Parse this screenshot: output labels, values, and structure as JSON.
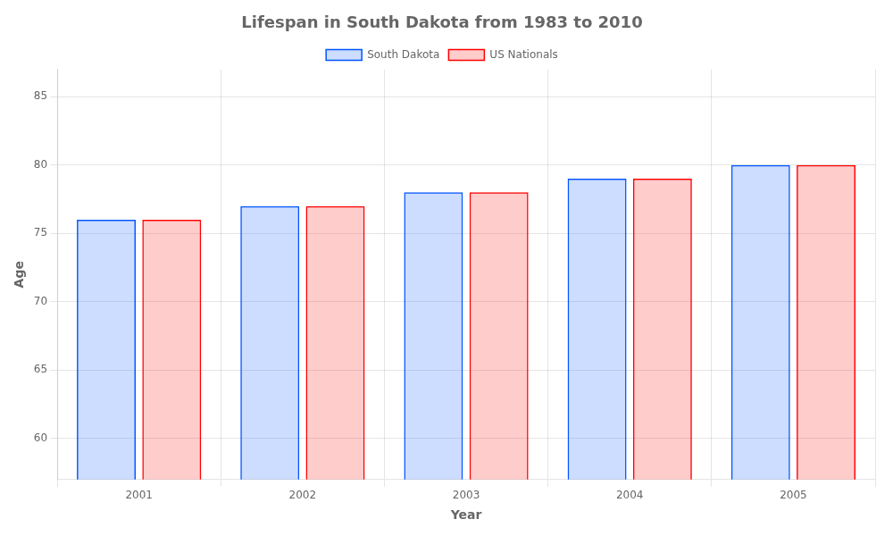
{
  "chart_data": {
    "type": "bar",
    "title": "Lifespan in South Dakota from 1983 to 2010",
    "x_label": "Year",
    "y_label": "Age",
    "categories": [
      "2001",
      "2002",
      "2003",
      "2004",
      "2005"
    ],
    "series": [
      {
        "name": "South Dakota",
        "color": "#0055ff",
        "values": [
          76,
          77,
          78,
          79,
          80
        ]
      },
      {
        "name": "US Nationals",
        "color": "#ff0000",
        "values": [
          76,
          77,
          78,
          79,
          80
        ]
      }
    ],
    "ylim": [
      57,
      87
    ],
    "yticks": [
      60,
      65,
      70,
      75,
      80,
      85
    ],
    "grid": true,
    "legend": "top"
  }
}
